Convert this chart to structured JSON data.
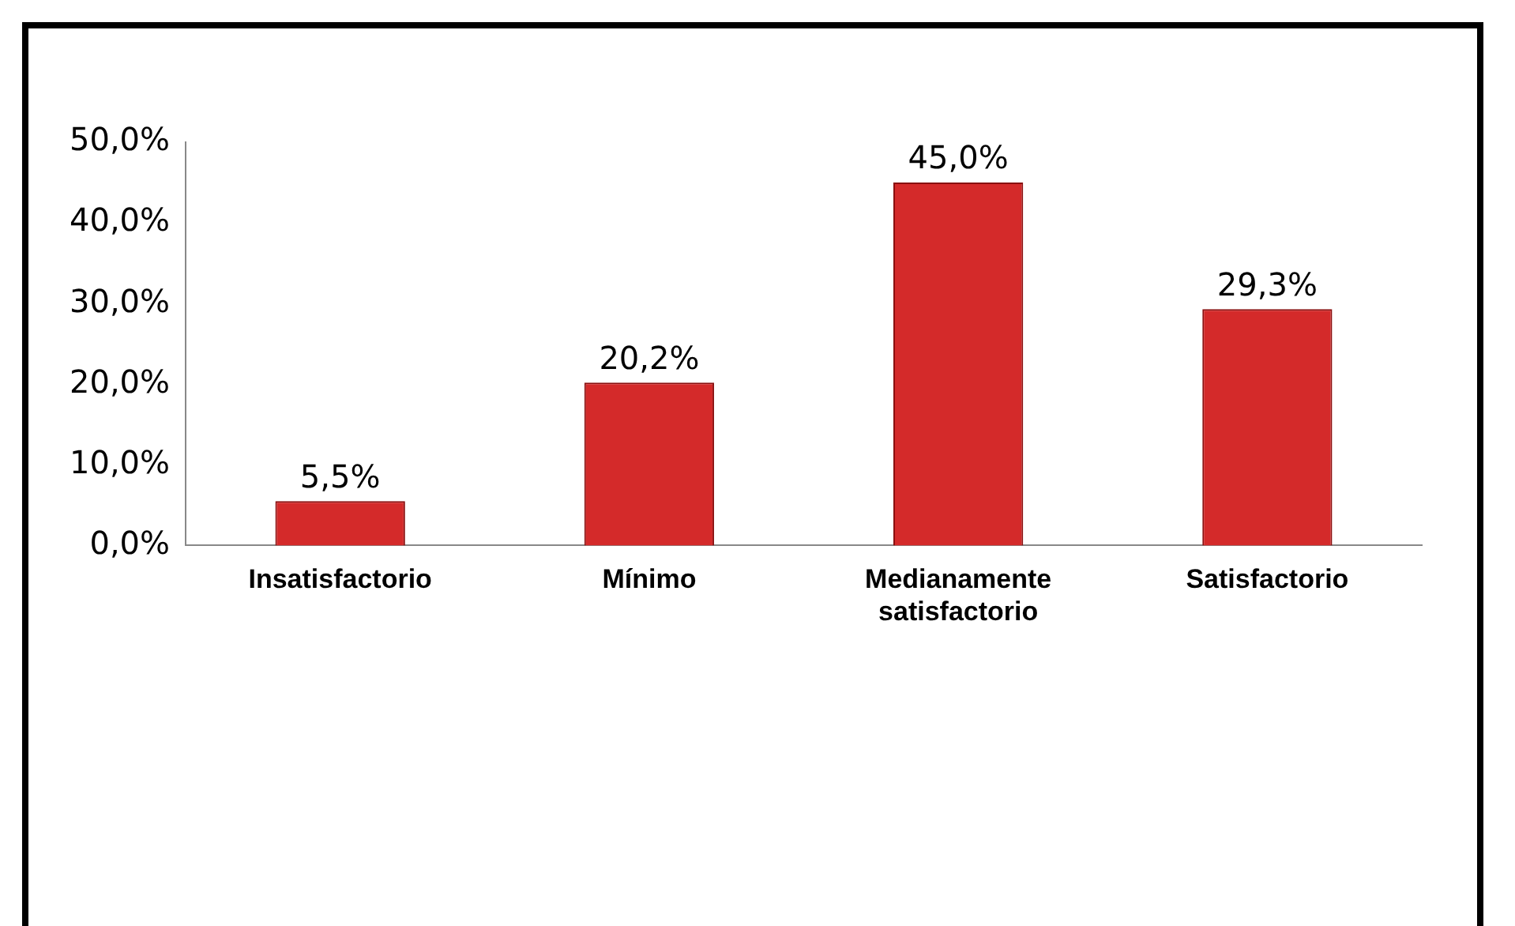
{
  "chart_data": {
    "type": "bar",
    "categories": [
      "Insatisfactorio",
      "Mínimo",
      "Medianamente\nsatisfactorio",
      "Satisfactorio"
    ],
    "values": [
      5.5,
      20.2,
      45.0,
      29.3
    ],
    "value_labels": [
      "5,5%",
      "20,2%",
      "45,0%",
      "29,3%"
    ],
    "color": "#d42a2a",
    "ylim": [
      0,
      50
    ],
    "yticks": [
      {
        "value": 0,
        "label": "0,0%"
      },
      {
        "value": 10,
        "label": "10,0%"
      },
      {
        "value": 20,
        "label": "20,0%"
      },
      {
        "value": 30,
        "label": "30,0%"
      },
      {
        "value": 40,
        "label": "40,0%"
      },
      {
        "value": 50,
        "label": "50,0%"
      }
    ],
    "grid": false,
    "legend": false
  }
}
